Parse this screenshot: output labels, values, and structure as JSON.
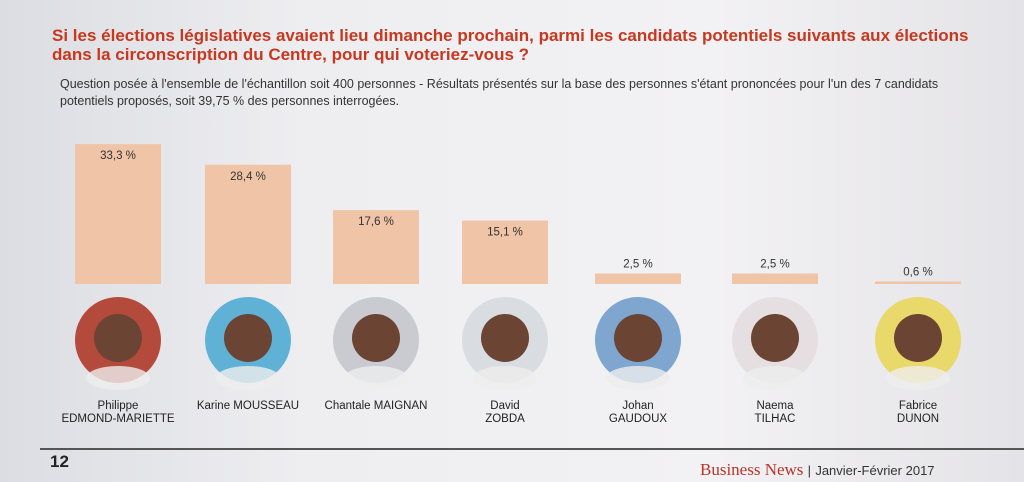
{
  "chart_data": {
    "type": "bar",
    "title": "Si les élections législatives avaient lieu dimanche prochain, parmi les candidats potentiels suivants aux élections dans la circonscription du Centre, pour qui voteriez-vous ?",
    "subtitle": "Question posée à l'ensemble de l'échantillon soit 400 personnes - Résultats présentés sur la base des personnes s'étant prononcées pour l'un des 7 candidats potentiels proposés, soit 39,75 % des personnes interrogées.",
    "categories": [
      "Philippe\nEDMOND-MARIETTE",
      "Karine MOUSSEAU",
      "Chantale MAIGNAN",
      "David\nZOBDA",
      "Johan\nGAUDOUX",
      "Naema\nTILHAC",
      "Fabrice\nDUNON"
    ],
    "values": [
      33.3,
      28.4,
      17.6,
      15.1,
      2.5,
      2.5,
      0.6
    ],
    "value_labels": [
      "33,3 %",
      "28,4 %",
      "17,6 %",
      "15,1 %",
      "2,5 %",
      "2,5 %",
      "0,6 %"
    ],
    "color": "#f0c4a6"
  },
  "page": {
    "number": "12",
    "publication": "Business News",
    "date": "Janvier-Février 2017"
  }
}
